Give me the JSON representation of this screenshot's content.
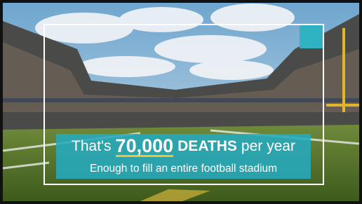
{
  "headline": {
    "prefix": "That's",
    "number": "70,000",
    "emphasis": "DEATHS",
    "suffix": "per year"
  },
  "subline": "Enough to fill an entire football stadium"
}
